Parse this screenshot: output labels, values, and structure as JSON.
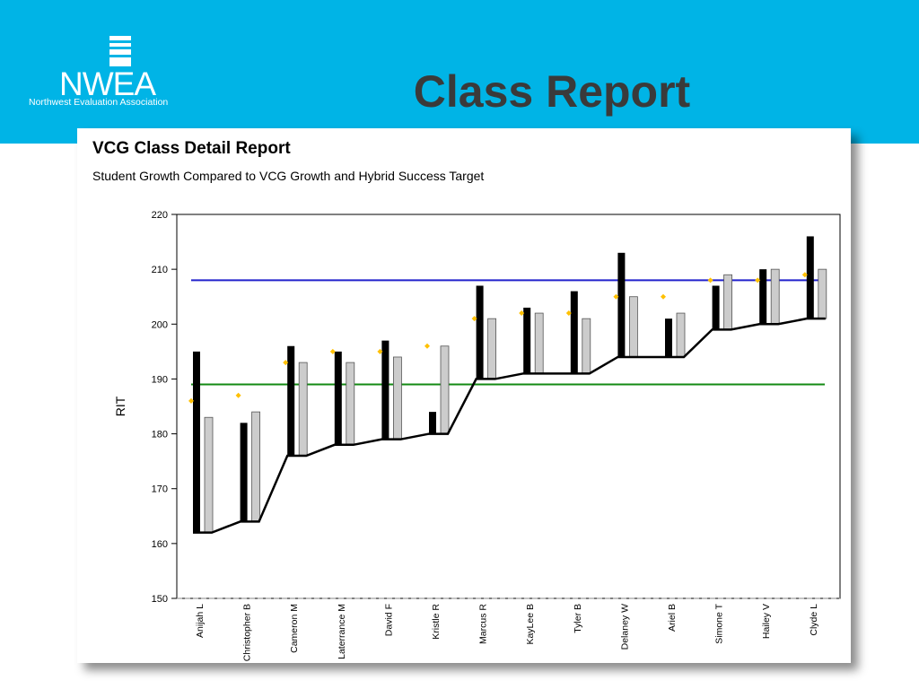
{
  "header": {
    "logo_name": "NWEA",
    "logo_sub": "Northwest Evaluation Association",
    "slide_title": "Class Report"
  },
  "colors": {
    "header_bg": "#00b4e6",
    "title_text": "#3a3a3a",
    "vcg_target_line": "#2222cc",
    "hybrid_target_line": "#138a13",
    "projection_marker": "#ffc000",
    "start_bar": "#000000",
    "growth_bar": "#cccccc"
  },
  "report": {
    "title": "VCG Class Detail Report",
    "subtitle": "Student Growth Compared to VCG Growth and Hybrid Success Target"
  },
  "chart_data": {
    "type": "bar",
    "ylabel": "RIT",
    "ylim": [
      150,
      220
    ],
    "yticks": [
      150,
      160,
      170,
      180,
      190,
      200,
      210,
      220
    ],
    "categories": [
      "Anijah L",
      "Christopher B",
      "Cameron M",
      "Laterrance M",
      "David F",
      "Kristle R",
      "Marcus R",
      "KayLee B",
      "Tyler B",
      "Delaney W",
      "Ariel B",
      "Simone T",
      "Hailey V",
      "Clyde L"
    ],
    "series": [
      {
        "values": [
          [
            162,
            195
          ],
          [
            164,
            182
          ],
          [
            176,
            196
          ],
          [
            178,
            195
          ],
          [
            179,
            197
          ],
          [
            180,
            184
          ],
          [
            190,
            207
          ],
          [
            191,
            203
          ],
          [
            191,
            206
          ],
          [
            194,
            213
          ],
          [
            194,
            201
          ],
          [
            199,
            207
          ],
          [
            200,
            210
          ],
          [
            201,
            216
          ]
        ]
      },
      {
        "values": [
          [
            162,
            183
          ],
          [
            164,
            184
          ],
          [
            176,
            193
          ],
          [
            178,
            193
          ],
          [
            179,
            194
          ],
          [
            180,
            196
          ],
          [
            190,
            201
          ],
          [
            191,
            202
          ],
          [
            191,
            201
          ],
          [
            194,
            205
          ],
          [
            194,
            202
          ],
          [
            199,
            209
          ],
          [
            200,
            210
          ],
          [
            201,
            210
          ]
        ]
      },
      {
        "values": [
          186,
          187,
          193,
          195,
          195,
          196,
          201,
          202,
          202,
          205,
          205,
          208,
          208,
          209
        ]
      }
    ],
    "reference_lines": [
      {
        "value": 208,
        "color": "#2222cc"
      },
      {
        "value": 189,
        "color": "#138a13"
      }
    ],
    "grid": false
  }
}
